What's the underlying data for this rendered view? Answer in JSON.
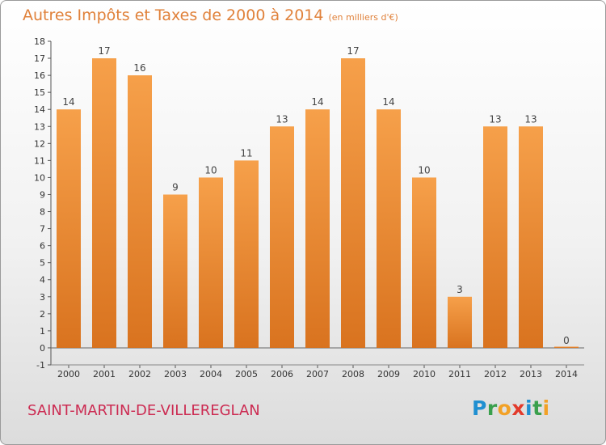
{
  "title": "Autres Impôts et Taxes de 2000 à 2014",
  "subtitle": "(en milliers d'€)",
  "commune": "SAINT-MARTIN-DE-VILLEREGLAN",
  "logo": "Proxiti",
  "colors": {
    "bar": "#f2943a",
    "bar_dark": "#d9731f",
    "title": "#e0813a",
    "commune": "#cc2b52"
  },
  "chart_data": {
    "type": "bar",
    "title": "Autres Impôts et Taxes de 2000 à 2014",
    "subtitle": "(en milliers d'€)",
    "xlabel": "",
    "ylabel": "",
    "categories": [
      "2000",
      "2001",
      "2002",
      "2003",
      "2004",
      "2005",
      "2006",
      "2007",
      "2008",
      "2009",
      "2010",
      "2011",
      "2012",
      "2013",
      "2014"
    ],
    "values": [
      14,
      17,
      16,
      9,
      10,
      11,
      13,
      14,
      17,
      14,
      10,
      3,
      13,
      13,
      0
    ],
    "ylim": [
      -1,
      18
    ],
    "yticks": [
      -1,
      0,
      1,
      2,
      3,
      4,
      5,
      6,
      7,
      8,
      9,
      10,
      11,
      12,
      13,
      14,
      15,
      16,
      17,
      18
    ],
    "grid": false,
    "data_labels": true
  }
}
